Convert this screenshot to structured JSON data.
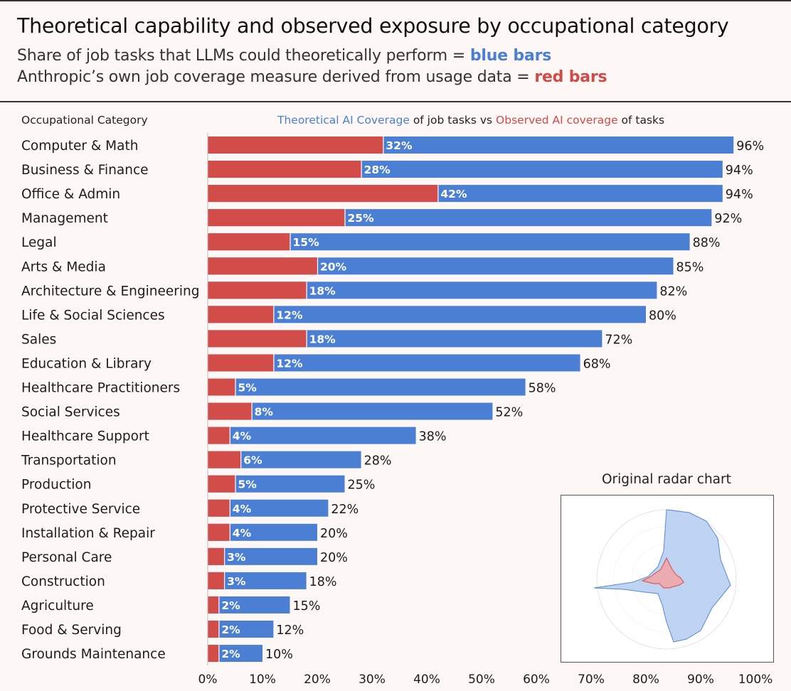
{
  "header": {
    "title": "Theoretical capability and observed exposure by occupational category",
    "subtitle1_prefix": "Share of job tasks that LLMs could theoretically perform = ",
    "subtitle1_highlight": "blue bars",
    "subtitle2_prefix": "Anthropic’s own job coverage measure derived from usage data = ",
    "subtitle2_highlight": "red bars"
  },
  "column_header": "Occupational Category",
  "legend_header": {
    "part1": "Theoretical AI Coverage",
    "part2": " of job tasks vs ",
    "part3": "Observed AI coverage",
    "part4": " of tasks"
  },
  "colors": {
    "theoretical": "#4a7fd4",
    "observed": "#d24d4a"
  },
  "chart_data": {
    "type": "bar",
    "orientation": "horizontal",
    "categories": [
      "Computer & Math",
      "Business & Finance",
      "Office & Admin",
      "Management",
      "Legal",
      "Arts & Media",
      "Architecture & Engineering",
      "Life & Social Sciences",
      "Sales",
      "Education & Library",
      "Healthcare Practitioners",
      "Social Services",
      "Healthcare Support",
      "Transportation",
      "Production",
      "Protective Service",
      "Installation & Repair",
      "Personal Care",
      "Construction",
      "Agriculture",
      "Food & Serving",
      "Grounds Maintenance"
    ],
    "series": [
      {
        "name": "Theoretical AI Coverage",
        "values": [
          96,
          94,
          94,
          92,
          88,
          85,
          82,
          80,
          72,
          68,
          58,
          52,
          38,
          28,
          25,
          22,
          20,
          20,
          18,
          15,
          12,
          10
        ]
      },
      {
        "name": "Observed AI coverage",
        "values": [
          32,
          28,
          42,
          25,
          15,
          20,
          18,
          12,
          18,
          12,
          5,
          8,
          4,
          6,
          5,
          4,
          4,
          3,
          3,
          2,
          2,
          2
        ]
      }
    ],
    "value_format": "{v}%",
    "xlim": [
      0,
      100
    ],
    "xticks": [
      "0%",
      "10%",
      "20%",
      "30%",
      "40%",
      "50%",
      "60%",
      "70%",
      "80%",
      "90%",
      "100%"
    ],
    "xtick_values": [
      0,
      10,
      20,
      30,
      40,
      50,
      60,
      70,
      80,
      90,
      100
    ]
  },
  "inset": {
    "title": "Original radar chart"
  }
}
